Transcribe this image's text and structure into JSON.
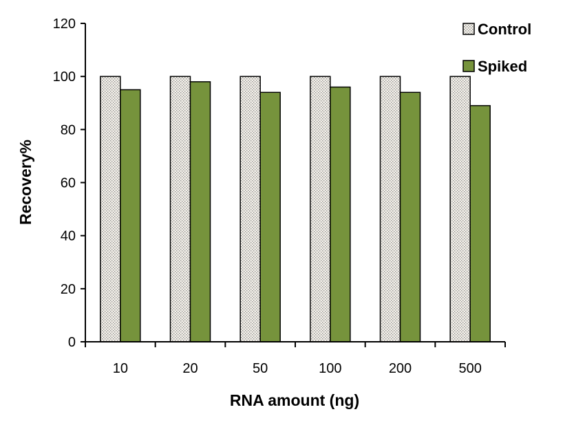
{
  "chart_data": {
    "type": "bar",
    "categories": [
      "10",
      "20",
      "50",
      "100",
      "200",
      "500"
    ],
    "series": [
      {
        "name": "Control",
        "values": [
          100,
          100,
          100,
          100,
          100,
          100
        ],
        "color": "#ece8de",
        "pattern": "dotted"
      },
      {
        "name": "Spiked",
        "values": [
          95,
          98,
          94,
          96,
          94,
          89
        ],
        "color": "#76933c"
      }
    ],
    "xlabel": "RNA amount (ng)",
    "ylabel": "Recovery%",
    "ylim": [
      0,
      120
    ],
    "yticks": [
      0,
      20,
      40,
      60,
      80,
      100,
      120
    ],
    "grid": false,
    "legend": "top-right"
  }
}
